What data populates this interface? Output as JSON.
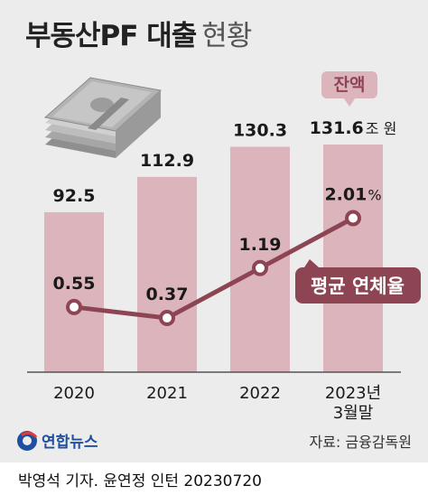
{
  "header": {
    "title_main": "부동산PF 대출",
    "title_sub": "현황"
  },
  "colors": {
    "bar": "#dcb5bc",
    "line": "#8e4553",
    "marker_fill": "#ffffff",
    "background": "#ececec",
    "text": "#1a1a1a"
  },
  "labels": {
    "balance_badge": "잔액",
    "balance_unit": "조 원",
    "rate_badge": "평균 연체율",
    "rate_unit": "%",
    "source": "자료: 금융감독원",
    "agency": "연합뉴스",
    "credit": "박영석 기자. 윤연정 인턴  20230720"
  },
  "icons": {
    "money": "money-stack-icon",
    "agency_logo": "yonhap-logo-icon"
  },
  "chart_data": {
    "type": "bar",
    "categories": [
      "2020",
      "2021",
      "2022",
      "2023년\n3월말"
    ],
    "series": [
      {
        "name": "잔액",
        "type": "bar",
        "unit": "조 원",
        "values": [
          92.5,
          112.9,
          130.3,
          131.6
        ],
        "labels": [
          "92.5",
          "112.9",
          "130.3",
          "131.6"
        ]
      },
      {
        "name": "평균 연체율",
        "type": "line",
        "unit": "%",
        "values": [
          0.55,
          0.37,
          1.19,
          2.01
        ],
        "labels": [
          "0.55",
          "0.37",
          "1.19",
          "2.01"
        ]
      }
    ],
    "grid": false,
    "legend": "none"
  }
}
